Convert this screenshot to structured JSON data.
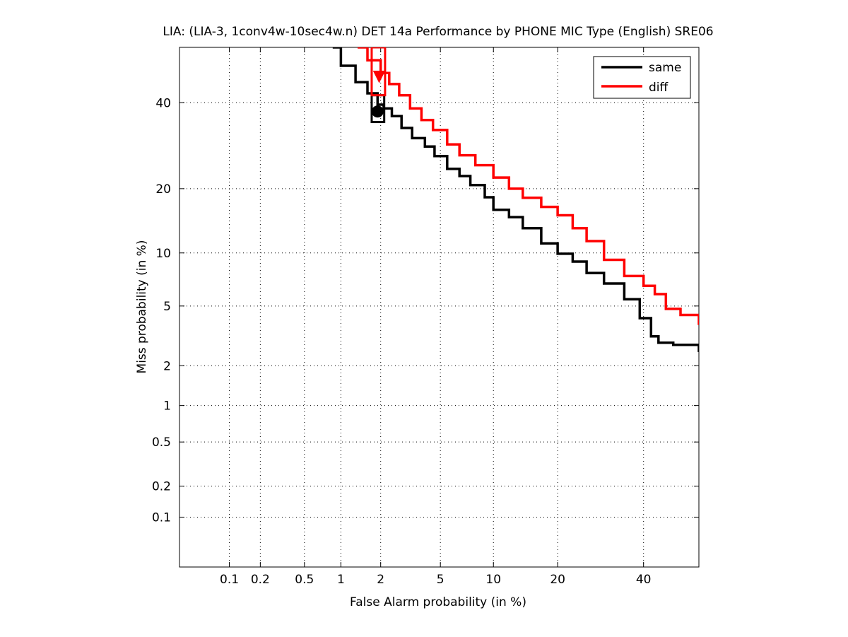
{
  "chart_data": {
    "type": "line",
    "scale": "normal-deviate (DET)",
    "title": "LIA: (LIA-3, 1conv4w-10sec4w.n) DET 14a Performance by PHONE MIC Type (English) SRE06",
    "xlabel": "False Alarm probability (in %)",
    "ylabel": "Miss probability (in %)",
    "xlim": [
      0.03,
      55
    ],
    "ylim": [
      0.03,
      55
    ],
    "x_ticks": [
      0.1,
      0.2,
      0.5,
      1,
      2,
      5,
      10,
      20,
      40
    ],
    "x_tick_labels": [
      "0.1",
      "0.2",
      "0.5",
      "1",
      "2",
      "5",
      "10",
      "20",
      "40"
    ],
    "y_ticks": [
      0.1,
      0.2,
      0.5,
      1,
      2,
      5,
      10,
      20,
      40
    ],
    "y_tick_labels": [
      "0.1",
      "0.2",
      "0.5",
      "1",
      "2",
      "5",
      "10",
      "20",
      "40"
    ],
    "grid": true,
    "legend_position": "top-right",
    "series": [
      {
        "name": "same",
        "color": "#000000",
        "points": [
          [
            0.86,
            55
          ],
          [
            1.0,
            50
          ],
          [
            1.3,
            45.5
          ],
          [
            1.6,
            42.5
          ],
          [
            1.9,
            39.5
          ],
          [
            2.1,
            38.5
          ],
          [
            2.4,
            36.5
          ],
          [
            2.8,
            33.5
          ],
          [
            3.3,
            31
          ],
          [
            4.0,
            29
          ],
          [
            4.6,
            26.8
          ],
          [
            5.5,
            24
          ],
          [
            6.5,
            22.5
          ],
          [
            7.5,
            20.7
          ],
          [
            9.0,
            18.4
          ],
          [
            10.0,
            16.2
          ],
          [
            12.0,
            15
          ],
          [
            14.0,
            13.3
          ],
          [
            17.0,
            11.2
          ],
          [
            20.0,
            9.9
          ],
          [
            23.0,
            9.0
          ],
          [
            26.0,
            7.8
          ],
          [
            30.0,
            6.8
          ],
          [
            35.0,
            5.5
          ],
          [
            39.0,
            4.2
          ],
          [
            42.0,
            3.2
          ],
          [
            44.0,
            2.9
          ],
          [
            48.0,
            2.8
          ],
          [
            55.0,
            2.5
          ]
        ],
        "marker": {
          "x": 1.9,
          "y": 37.7,
          "shape": "circle"
        },
        "confidence_box": {
          "x": [
            1.72,
            2.12
          ],
          "y": [
            35,
            42
          ]
        }
      },
      {
        "name": "diff",
        "color": "#ff0000",
        "points": [
          [
            1.35,
            55
          ],
          [
            1.6,
            51.5
          ],
          [
            2.0,
            48
          ],
          [
            2.3,
            45
          ],
          [
            2.7,
            42
          ],
          [
            3.2,
            38.5
          ],
          [
            3.8,
            35.5
          ],
          [
            4.5,
            33
          ],
          [
            5.5,
            29.5
          ],
          [
            6.5,
            27
          ],
          [
            8.0,
            24.8
          ],
          [
            10.0,
            22.2
          ],
          [
            12.0,
            20
          ],
          [
            14.0,
            18.3
          ],
          [
            17.0,
            16.7
          ],
          [
            20.0,
            15.3
          ],
          [
            23.0,
            13.3
          ],
          [
            26.0,
            11.5
          ],
          [
            30.0,
            9.2
          ],
          [
            35.0,
            7.5
          ],
          [
            40.0,
            6.6
          ],
          [
            43.0,
            5.9
          ],
          [
            46.0,
            4.8
          ],
          [
            50.0,
            4.4
          ],
          [
            55.0,
            3.8
          ]
        ],
        "marker": {
          "x": 1.95,
          "y": 47,
          "shape": "triangle"
        },
        "confidence_box": {
          "x": [
            1.72,
            2.15
          ],
          "y": [
            42,
            55
          ]
        }
      }
    ]
  }
}
